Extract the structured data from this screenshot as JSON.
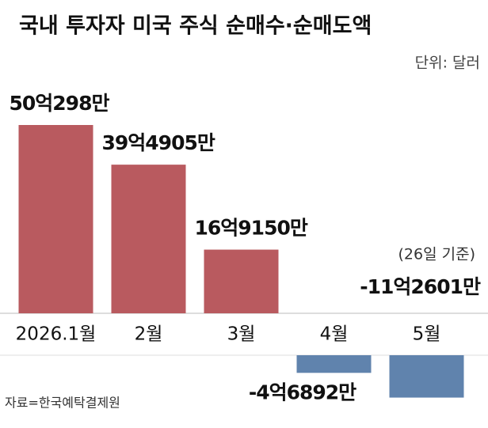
{
  "chart_data": {
    "type": "bar",
    "title": "국내 투자자 미국 주식 순매수·순매도액",
    "unit_label": "단위: 달러",
    "categories": [
      "2026.1월",
      "2월",
      "3월",
      "4월",
      "5월"
    ],
    "values": [
      5002980000,
      3949050000,
      1691500000,
      -468920000,
      -1126010000
    ],
    "value_labels": [
      "50억298만",
      "39억4905만",
      "16억9150만",
      "-4억6892만",
      "-11억2601만"
    ],
    "color_positive": "#b95a5f",
    "color_negative": "#6083ad",
    "annotation": "(26일 기준)",
    "source": "자료=한국예탁결제원"
  }
}
